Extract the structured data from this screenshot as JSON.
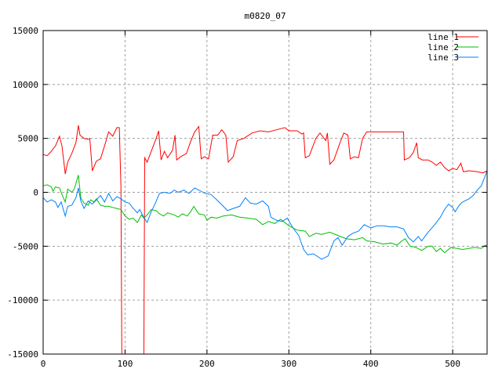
{
  "chart_data": {
    "type": "line",
    "title": "m0820_07",
    "xlabel": "",
    "ylabel": "",
    "xlim": [
      0,
      542
    ],
    "ylim": [
      -15000,
      15000
    ],
    "grid": true,
    "legend_position": "top-right",
    "x_ticks": [
      0,
      100,
      200,
      300,
      400,
      500
    ],
    "y_ticks": [
      -15000,
      -10000,
      -5000,
      0,
      5000,
      10000,
      15000
    ],
    "series": [
      {
        "name": "line 1",
        "color": "#ff0000",
        "points": [
          [
            0,
            3500
          ],
          [
            5,
            3400
          ],
          [
            10,
            3800
          ],
          [
            15,
            4300
          ],
          [
            20,
            5200
          ],
          [
            23,
            4300
          ],
          [
            27,
            1700
          ],
          [
            30,
            2800
          ],
          [
            35,
            3600
          ],
          [
            40,
            4600
          ],
          [
            43,
            6200
          ],
          [
            45,
            5300
          ],
          [
            50,
            5000
          ],
          [
            55,
            4900
          ],
          [
            57,
            5000
          ],
          [
            60,
            2000
          ],
          [
            65,
            2900
          ],
          [
            70,
            3100
          ],
          [
            75,
            4300
          ],
          [
            80,
            5600
          ],
          [
            85,
            5200
          ],
          [
            90,
            6000
          ],
          [
            93,
            6000
          ],
          [
            95,
            500
          ],
          [
            96,
            -15000
          ],
          [
            123,
            -15000
          ],
          [
            124,
            3200
          ],
          [
            127,
            2800
          ],
          [
            132,
            3800
          ],
          [
            138,
            5000
          ],
          [
            141,
            5700
          ],
          [
            144,
            3000
          ],
          [
            148,
            3800
          ],
          [
            152,
            3200
          ],
          [
            158,
            3900
          ],
          [
            161,
            5300
          ],
          [
            163,
            3000
          ],
          [
            168,
            3300
          ],
          [
            175,
            3600
          ],
          [
            180,
            4700
          ],
          [
            185,
            5600
          ],
          [
            190,
            6100
          ],
          [
            193,
            3100
          ],
          [
            197,
            3300
          ],
          [
            202,
            3100
          ],
          [
            207,
            5300
          ],
          [
            213,
            5300
          ],
          [
            218,
            5800
          ],
          [
            223,
            5300
          ],
          [
            226,
            2800
          ],
          [
            232,
            3300
          ],
          [
            237,
            4800
          ],
          [
            245,
            5000
          ],
          [
            255,
            5500
          ],
          [
            265,
            5700
          ],
          [
            275,
            5600
          ],
          [
            285,
            5800
          ],
          [
            295,
            6000
          ],
          [
            300,
            5700
          ],
          [
            310,
            5700
          ],
          [
            316,
            5400
          ],
          [
            318,
            5500
          ],
          [
            320,
            3200
          ],
          [
            325,
            3400
          ],
          [
            333,
            5000
          ],
          [
            338,
            5500
          ],
          [
            345,
            4800
          ],
          [
            347,
            5500
          ],
          [
            350,
            2600
          ],
          [
            355,
            3000
          ],
          [
            362,
            4500
          ],
          [
            367,
            5500
          ],
          [
            372,
            5300
          ],
          [
            375,
            3100
          ],
          [
            380,
            3300
          ],
          [
            385,
            3200
          ],
          [
            390,
            5000
          ],
          [
            395,
            5600
          ],
          [
            440,
            5600
          ],
          [
            441,
            3000
          ],
          [
            447,
            3200
          ],
          [
            452,
            3700
          ],
          [
            456,
            4600
          ],
          [
            458,
            3200
          ],
          [
            463,
            3000
          ],
          [
            470,
            3000
          ],
          [
            475,
            2800
          ],
          [
            480,
            2500
          ],
          [
            485,
            2800
          ],
          [
            490,
            2300
          ],
          [
            495,
            2000
          ],
          [
            500,
            2200
          ],
          [
            505,
            2100
          ],
          [
            510,
            2700
          ],
          [
            513,
            1900
          ],
          [
            520,
            2000
          ],
          [
            530,
            1900
          ],
          [
            537,
            1800
          ],
          [
            542,
            2000
          ]
        ]
      },
      {
        "name": "line 2",
        "color": "#00c000",
        "points": [
          [
            0,
            600
          ],
          [
            5,
            700
          ],
          [
            10,
            500
          ],
          [
            12,
            100
          ],
          [
            15,
            500
          ],
          [
            20,
            400
          ],
          [
            23,
            -200
          ],
          [
            27,
            -900
          ],
          [
            30,
            300
          ],
          [
            35,
            0
          ],
          [
            38,
            300
          ],
          [
            43,
            1600
          ],
          [
            46,
            -500
          ],
          [
            50,
            -1000
          ],
          [
            55,
            -1200
          ],
          [
            58,
            -700
          ],
          [
            62,
            -900
          ],
          [
            65,
            -600
          ],
          [
            70,
            -1200
          ],
          [
            75,
            -1300
          ],
          [
            80,
            -1300
          ],
          [
            85,
            -1400
          ],
          [
            90,
            -1500
          ],
          [
            95,
            -1600
          ],
          [
            100,
            -2200
          ],
          [
            105,
            -2500
          ],
          [
            110,
            -2400
          ],
          [
            115,
            -2800
          ],
          [
            120,
            -2100
          ],
          [
            123,
            -2400
          ],
          [
            127,
            -2100
          ],
          [
            132,
            -1600
          ],
          [
            138,
            -1700
          ],
          [
            142,
            -2000
          ],
          [
            147,
            -2200
          ],
          [
            152,
            -1900
          ],
          [
            160,
            -2100
          ],
          [
            165,
            -2300
          ],
          [
            170,
            -2000
          ],
          [
            176,
            -2200
          ],
          [
            180,
            -1800
          ],
          [
            184,
            -1300
          ],
          [
            190,
            -2000
          ],
          [
            197,
            -2100
          ],
          [
            200,
            -2600
          ],
          [
            205,
            -2300
          ],
          [
            212,
            -2400
          ],
          [
            220,
            -2200
          ],
          [
            230,
            -2100
          ],
          [
            240,
            -2300
          ],
          [
            250,
            -2400
          ],
          [
            260,
            -2500
          ],
          [
            268,
            -3000
          ],
          [
            275,
            -2700
          ],
          [
            283,
            -2900
          ],
          [
            290,
            -2500
          ],
          [
            300,
            -3100
          ],
          [
            310,
            -3500
          ],
          [
            320,
            -3600
          ],
          [
            325,
            -4100
          ],
          [
            333,
            -3800
          ],
          [
            340,
            -3900
          ],
          [
            350,
            -3700
          ],
          [
            360,
            -4000
          ],
          [
            370,
            -4300
          ],
          [
            380,
            -4400
          ],
          [
            390,
            -4200
          ],
          [
            395,
            -4500
          ],
          [
            405,
            -4600
          ],
          [
            415,
            -4800
          ],
          [
            425,
            -4700
          ],
          [
            432,
            -4900
          ],
          [
            438,
            -4500
          ],
          [
            442,
            -4300
          ],
          [
            448,
            -5000
          ],
          [
            455,
            -5100
          ],
          [
            462,
            -5400
          ],
          [
            470,
            -5000
          ],
          [
            475,
            -5000
          ],
          [
            480,
            -5500
          ],
          [
            485,
            -5200
          ],
          [
            490,
            -5600
          ],
          [
            498,
            -5100
          ],
          [
            505,
            -5200
          ],
          [
            512,
            -5300
          ],
          [
            520,
            -5200
          ],
          [
            527,
            -5100
          ],
          [
            535,
            -5200
          ],
          [
            540,
            -4900
          ],
          [
            542,
            -5100
          ]
        ]
      },
      {
        "name": "line 3",
        "color": "#0080ff",
        "points": [
          [
            0,
            -500
          ],
          [
            5,
            -900
          ],
          [
            10,
            -700
          ],
          [
            15,
            -900
          ],
          [
            18,
            -1400
          ],
          [
            22,
            -900
          ],
          [
            27,
            -2200
          ],
          [
            30,
            -1300
          ],
          [
            35,
            -1200
          ],
          [
            40,
            -500
          ],
          [
            43,
            400
          ],
          [
            46,
            -800
          ],
          [
            50,
            -1500
          ],
          [
            55,
            -800
          ],
          [
            60,
            -1100
          ],
          [
            65,
            -700
          ],
          [
            70,
            -300
          ],
          [
            75,
            -900
          ],
          [
            80,
            -100
          ],
          [
            85,
            -800
          ],
          [
            90,
            -400
          ],
          [
            95,
            -600
          ],
          [
            100,
            -900
          ],
          [
            105,
            -1000
          ],
          [
            110,
            -1500
          ],
          [
            115,
            -1900
          ],
          [
            118,
            -1600
          ],
          [
            122,
            -2200
          ],
          [
            127,
            -2800
          ],
          [
            132,
            -1800
          ],
          [
            137,
            -1000
          ],
          [
            142,
            -100
          ],
          [
            148,
            0
          ],
          [
            155,
            -100
          ],
          [
            160,
            200
          ],
          [
            165,
            0
          ],
          [
            172,
            200
          ],
          [
            178,
            -100
          ],
          [
            185,
            400
          ],
          [
            190,
            200
          ],
          [
            198,
            -100
          ],
          [
            205,
            -200
          ],
          [
            212,
            -700
          ],
          [
            220,
            -1300
          ],
          [
            225,
            -1700
          ],
          [
            232,
            -1500
          ],
          [
            240,
            -1300
          ],
          [
            247,
            -500
          ],
          [
            253,
            -1000
          ],
          [
            260,
            -1100
          ],
          [
            268,
            -800
          ],
          [
            275,
            -1300
          ],
          [
            278,
            -2300
          ],
          [
            285,
            -2600
          ],
          [
            292,
            -2700
          ],
          [
            298,
            -2400
          ],
          [
            305,
            -3300
          ],
          [
            312,
            -4000
          ],
          [
            318,
            -5300
          ],
          [
            323,
            -5800
          ],
          [
            330,
            -5700
          ],
          [
            340,
            -6200
          ],
          [
            348,
            -5900
          ],
          [
            355,
            -4500
          ],
          [
            360,
            -4200
          ],
          [
            365,
            -4900
          ],
          [
            372,
            -4100
          ],
          [
            378,
            -3800
          ],
          [
            385,
            -3600
          ],
          [
            392,
            -3000
          ],
          [
            400,
            -3300
          ],
          [
            408,
            -3100
          ],
          [
            416,
            -3100
          ],
          [
            424,
            -3200
          ],
          [
            432,
            -3200
          ],
          [
            440,
            -3400
          ],
          [
            446,
            -4200
          ],
          [
            452,
            -4600
          ],
          [
            458,
            -4100
          ],
          [
            462,
            -4500
          ],
          [
            470,
            -3700
          ],
          [
            478,
            -3000
          ],
          [
            485,
            -2300
          ],
          [
            490,
            -1600
          ],
          [
            495,
            -1100
          ],
          [
            500,
            -1400
          ],
          [
            503,
            -1800
          ],
          [
            508,
            -1200
          ],
          [
            512,
            -900
          ],
          [
            520,
            -600
          ],
          [
            525,
            -300
          ],
          [
            530,
            200
          ],
          [
            535,
            600
          ],
          [
            540,
            1600
          ],
          [
            542,
            2000
          ]
        ]
      }
    ]
  }
}
